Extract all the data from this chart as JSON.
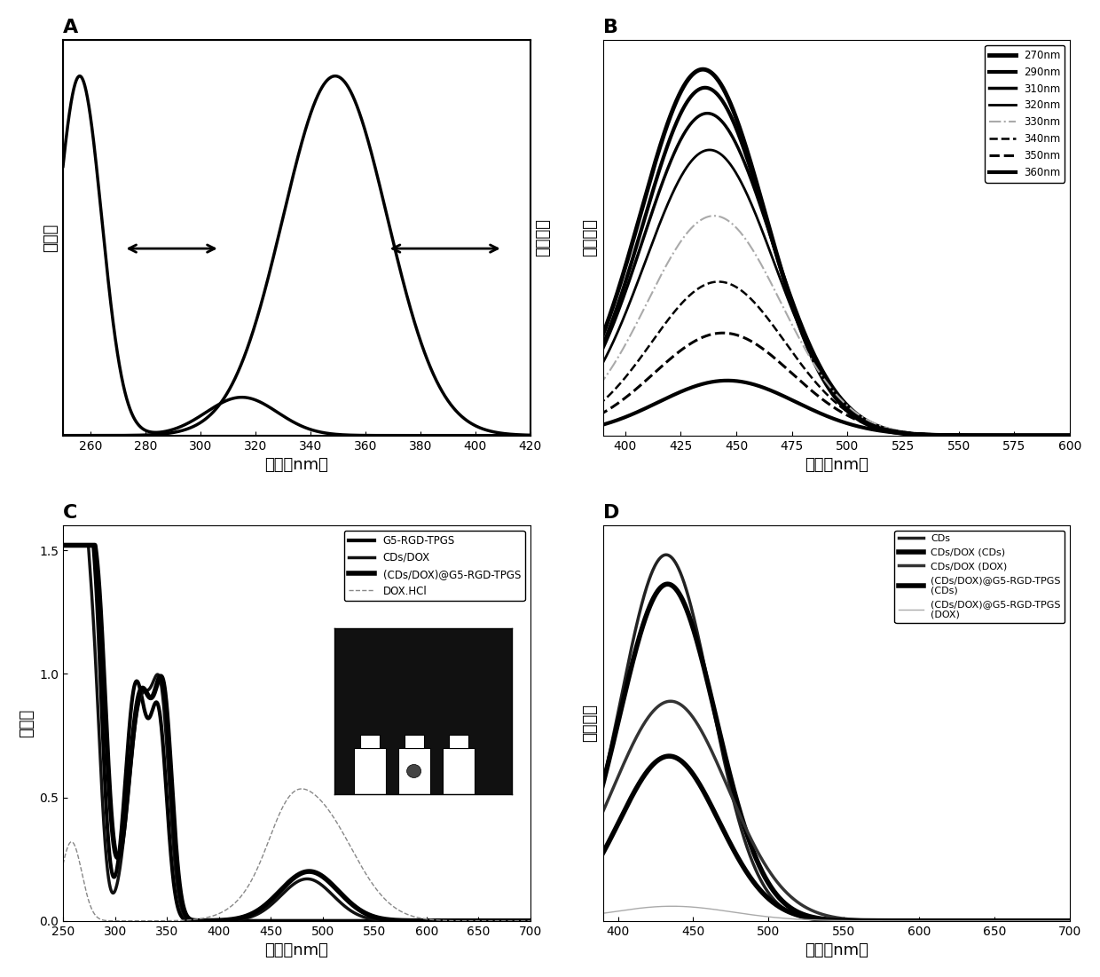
{
  "panel_A": {
    "title": "A",
    "xlabel": "波长（nm）",
    "ylabel_left": "吸光度",
    "ylabel_right": "荆光强度",
    "xlim": [
      250,
      420
    ]
  },
  "panel_B": {
    "title": "B",
    "xlabel": "波长（nm）",
    "ylabel": "荆光强度",
    "xlim": [
      390,
      600
    ],
    "legend_labels": [
      "270nm",
      "290nm",
      "310nm",
      "320nm",
      "330nm",
      "340nm",
      "350nm",
      "360nm"
    ],
    "legend_linestyles": [
      "-",
      "-",
      "-",
      "-",
      "-.",
      "--",
      "--",
      "-"
    ],
    "legend_linewidths": [
      3.5,
      3.0,
      2.5,
      2.0,
      1.5,
      1.8,
      2.2,
      3.0
    ],
    "peak_intensities": [
      1.0,
      0.95,
      0.88,
      0.78,
      0.6,
      0.42,
      0.28,
      0.15
    ],
    "peak_wavelength": [
      435,
      436,
      437,
      438,
      440,
      442,
      444,
      446
    ],
    "sigma": [
      28,
      28,
      29,
      29,
      30,
      30,
      31,
      31
    ]
  },
  "panel_C": {
    "title": "C",
    "xlabel": "波长（nm）",
    "ylabel": "吸光度",
    "xlim": [
      250,
      700
    ],
    "ylim": [
      0.0,
      1.6
    ],
    "yticks": [
      0.0,
      0.5,
      1.0,
      1.5
    ],
    "legend_labels": [
      "G5-RGD-TPGS",
      "CDs/DOX",
      "(CDs/DOX)@G5-RGD-TPGS",
      "DOX.HCl"
    ],
    "legend_linestyles": [
      "-",
      "-",
      "-",
      "--"
    ],
    "legend_linewidths": [
      3,
      2.5,
      4,
      1
    ]
  },
  "panel_D": {
    "title": "D",
    "xlabel": "波长（nm）",
    "ylabel": "荆光强度",
    "xlim": [
      390,
      700
    ],
    "legend_labels": [
      "CDs",
      "CDs/DOX (CDs)",
      "CDs/DOX (DOX)",
      "(CDs/DOX)@G5-RGD-TPGS\n(CDs)",
      "(CDs/DOX)@G5-RGD-TPGS\n(DOX)"
    ],
    "legend_linestyles": [
      "-",
      "-",
      "-",
      "-",
      "-"
    ],
    "legend_linewidths": [
      2.5,
      4,
      2.5,
      4,
      1
    ]
  },
  "font_size_label": 13,
  "font_size_tick": 10,
  "font_size_title": 16,
  "background_color": "#ffffff"
}
